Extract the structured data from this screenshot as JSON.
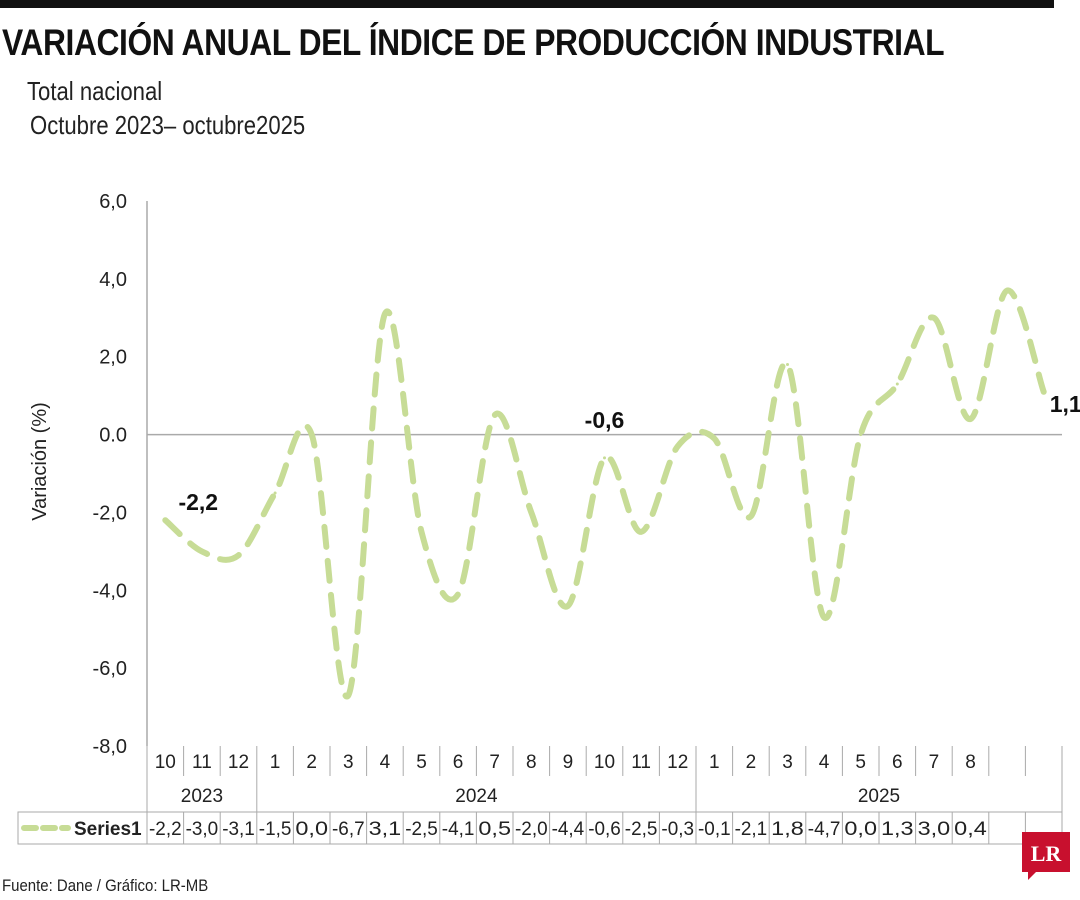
{
  "header": {
    "title": "VARIACIÓN ANUAL DEL ÍNDICE DE PRODUCCIÓN INDUSTRIAL",
    "subtitle_1": "Total nacional",
    "subtitle_2": "Octubre  2023– octubre2025"
  },
  "footer": {
    "source": "Fuente: Dane / Gráfico: LR-MB",
    "logo_text": "LR"
  },
  "colors": {
    "series": "#c7dc96",
    "logo": "#c8102e",
    "axis": "#aaaaaa"
  },
  "chart_data": {
    "type": "line",
    "ylabel": "Variación (%)",
    "ylim": [
      -8,
      6
    ],
    "y_ticks": [
      "6,0",
      "4,0",
      "2,0",
      "0.0",
      "-2,0",
      "-4,0",
      "-6,0",
      "-8,0"
    ],
    "y_tick_values": [
      6,
      4,
      2,
      0,
      -2,
      -4,
      -6,
      -8
    ],
    "categories": [
      "10",
      "11",
      "12",
      "1",
      "2",
      "3",
      "4",
      "5",
      "6",
      "7",
      "8",
      "9",
      "10",
      "11",
      "12",
      "1",
      "2",
      "3",
      "4",
      "5",
      "6",
      "7",
      "8",
      "",
      ""
    ],
    "years": [
      {
        "label": "2023",
        "count": 3
      },
      {
        "label": "2024",
        "count": 12
      },
      {
        "label": "2025",
        "count": 10
      }
    ],
    "series": [
      {
        "name": "Series1",
        "values": [
          -2.2,
          -3.0,
          -3.1,
          -1.5,
          0.0,
          -6.7,
          3.1,
          -2.5,
          -4.1,
          0.5,
          -2.0,
          -4.4,
          -0.6,
          -2.5,
          -0.3,
          -0.1,
          -2.1,
          1.8,
          -4.7,
          0.0,
          1.3,
          3.0,
          0.4,
          3.7,
          1.1
        ],
        "table_values": [
          "-2,2",
          "-3,0",
          "-3,1",
          "-1,5",
          "0,0",
          "-6,7",
          "3,1",
          "-2,5",
          "-4,1",
          "0,5",
          "-2,0",
          "-4,4",
          "-0,6",
          "-2,5",
          "-0,3",
          "-0,1",
          "-2,1",
          "1,8",
          "-4,7",
          "0,0",
          "1,3",
          "3,0",
          "0,4",
          "",
          ""
        ]
      }
    ],
    "annotations": [
      {
        "index": 0,
        "text": "-2,2"
      },
      {
        "index": 12,
        "text": "-0,6"
      },
      {
        "index": 24,
        "text": "1,1"
      }
    ],
    "grid": false,
    "legend": "data-table"
  }
}
